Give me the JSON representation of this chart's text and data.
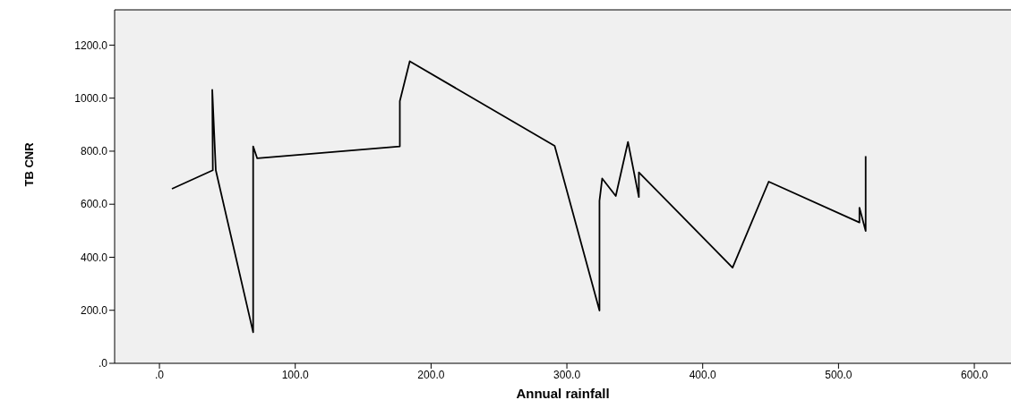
{
  "chart_data": {
    "type": "line",
    "xlabel": "Annual rainfall",
    "ylabel": "TB CNR",
    "x": [
      9.2,
      39.3,
      38.9,
      41.5,
      69,
      69,
      72,
      177,
      177,
      184.3,
      291,
      324,
      324,
      326,
      336,
      345,
      353,
      353,
      422,
      448.6,
      515.4,
      515.4,
      520,
      520
    ],
    "series": [
      {
        "color": "#000000",
        "values": [
          658,
          728,
          1031,
          728,
          117,
          818,
          773,
          818,
          989,
          1139,
          820,
          199,
          613,
          697,
          631,
          835,
          627,
          720,
          361,
          685,
          531,
          587,
          499,
          781
        ]
      }
    ],
    "xlim": [
      -33,
      627
    ],
    "ylim": [
      0,
      1333
    ],
    "xticks": [
      {
        "value": 0,
        "label": ".0"
      },
      {
        "value": 100,
        "label": "100.0"
      },
      {
        "value": 200,
        "label": "200.0"
      },
      {
        "value": 300,
        "label": "300.0"
      },
      {
        "value": 400,
        "label": "400.0"
      },
      {
        "value": 500,
        "label": "500.0"
      },
      {
        "value": 600,
        "label": "600.0"
      }
    ],
    "yticks": [
      {
        "value": 0,
        "label": ".0"
      },
      {
        "value": 200,
        "label": "200.0"
      },
      {
        "value": 400,
        "label": "400.0"
      },
      {
        "value": 600,
        "label": "600.0"
      },
      {
        "value": 800,
        "label": "800.0"
      },
      {
        "value": 1000,
        "label": "1000.0"
      },
      {
        "value": 1200,
        "label": "1200.0"
      }
    ],
    "grid": false,
    "marker": "none",
    "line_style": "solid"
  }
}
